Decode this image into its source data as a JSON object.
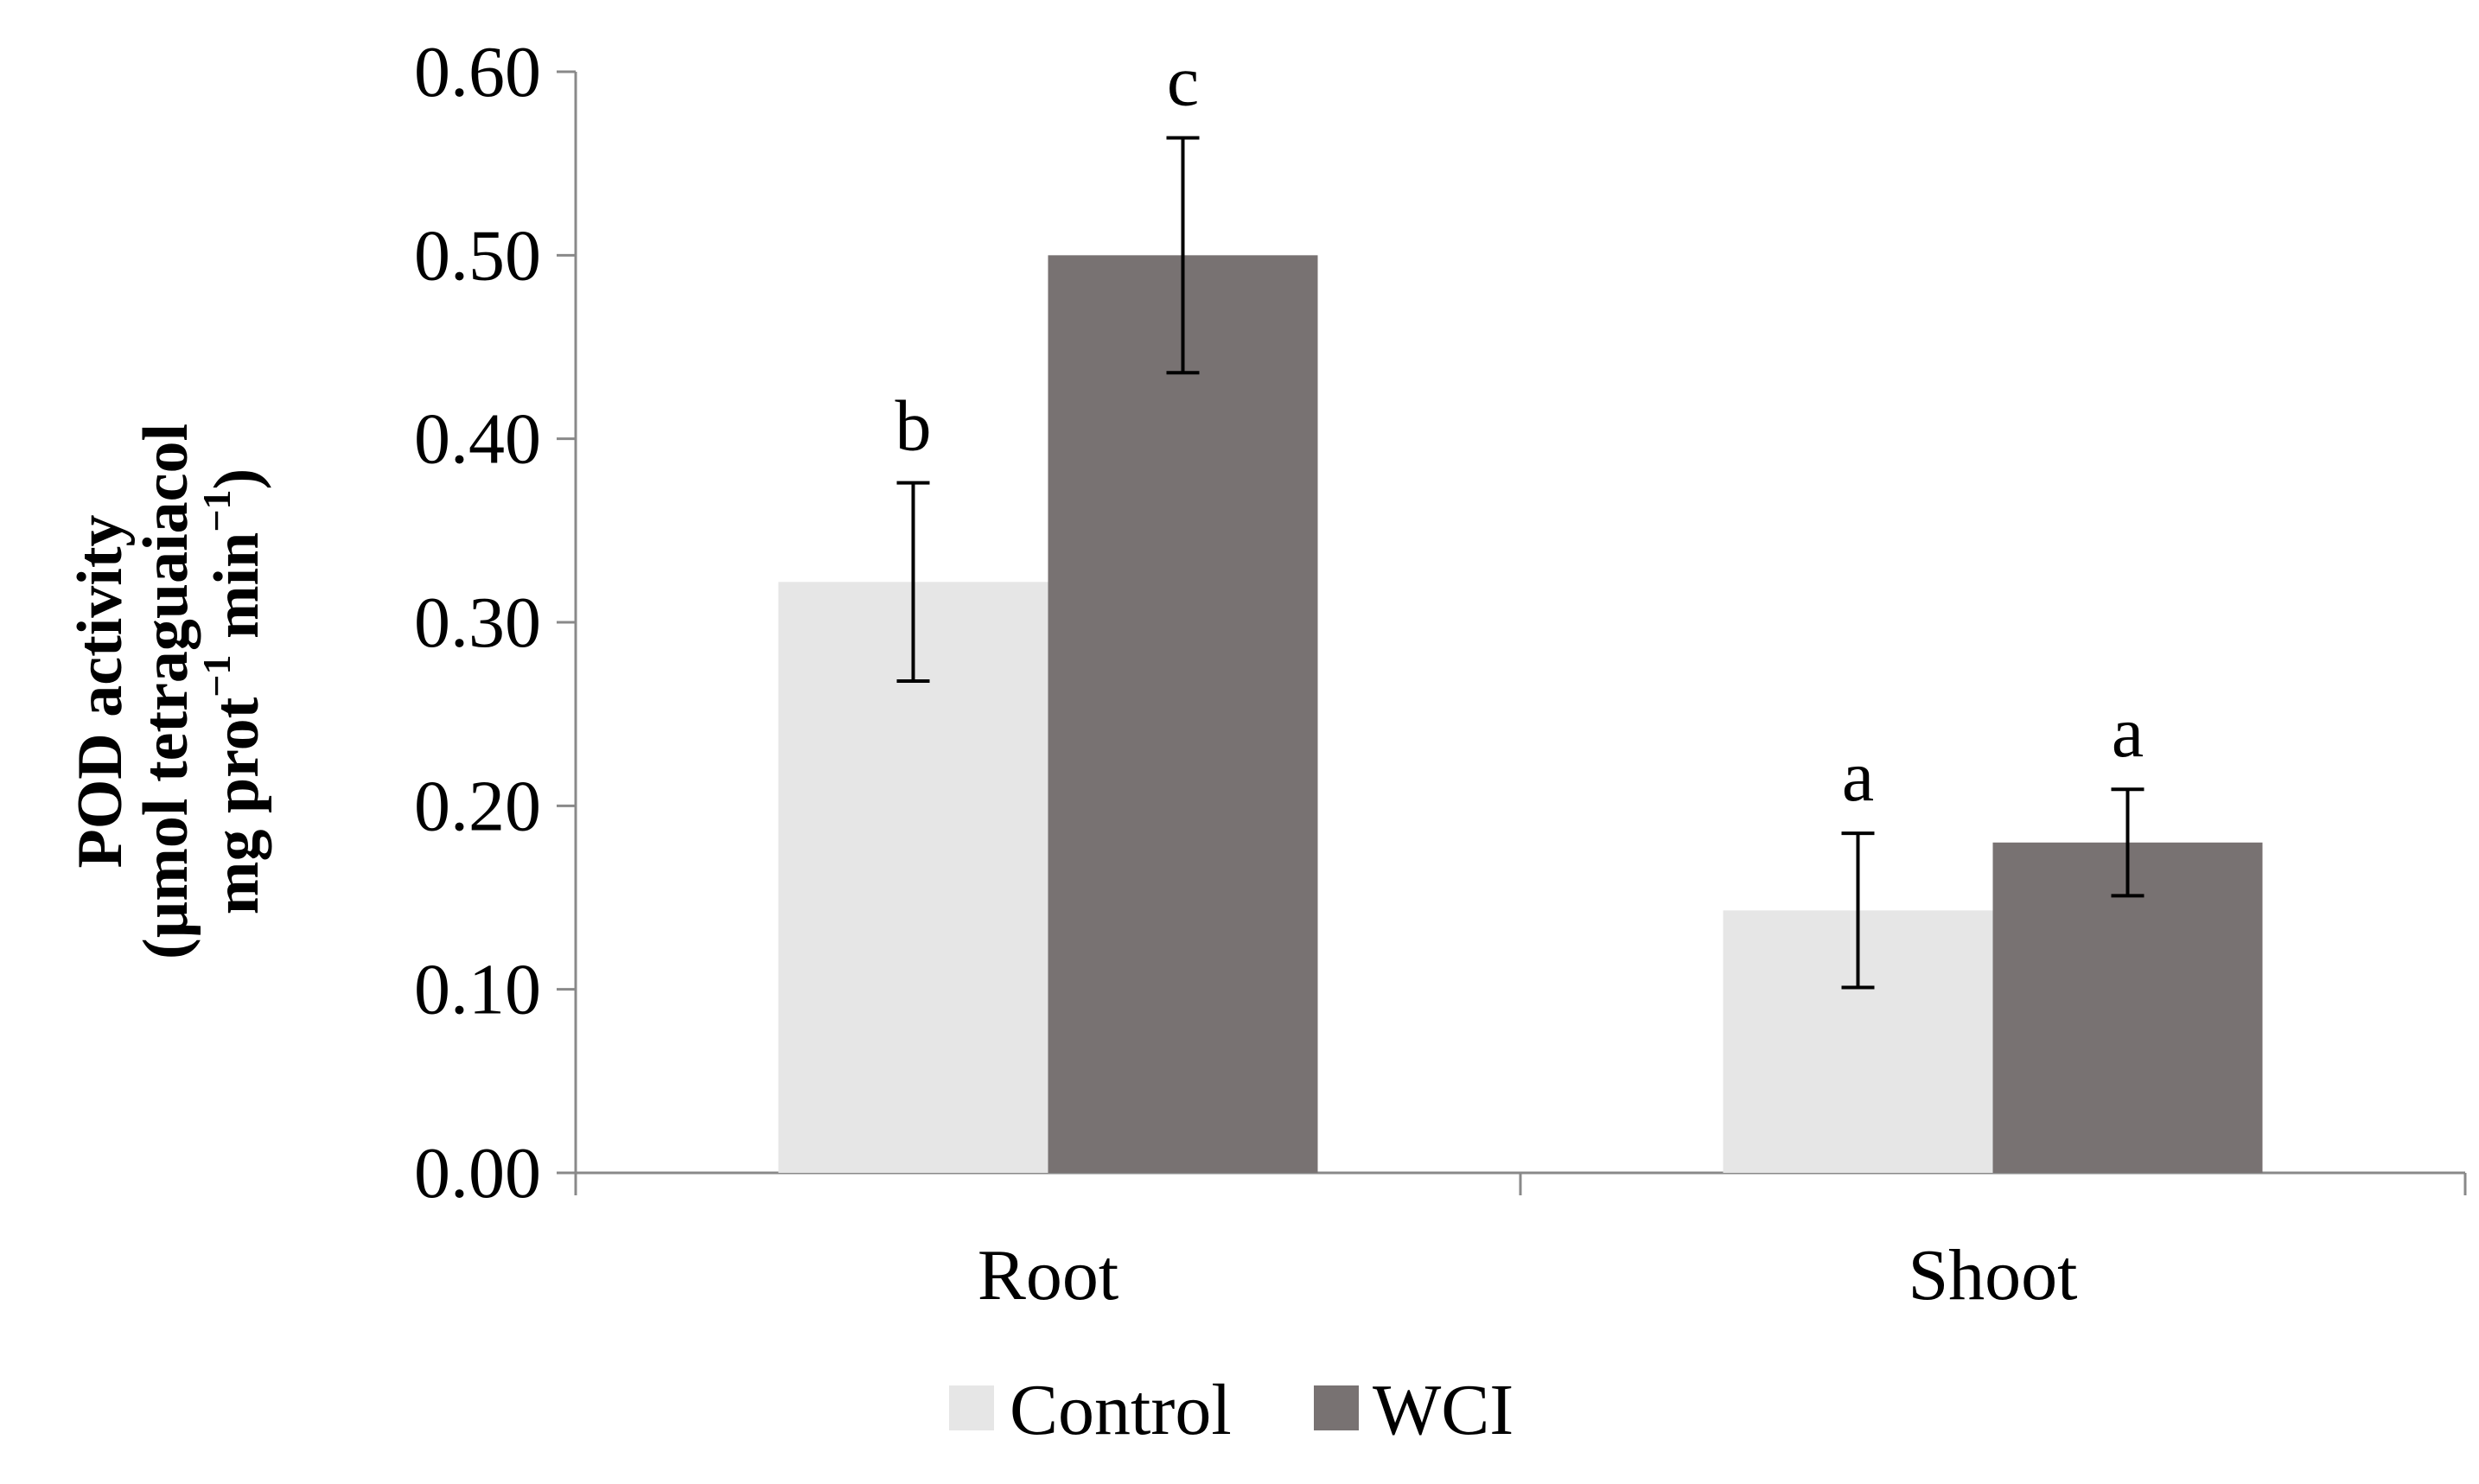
{
  "chart_data": {
    "type": "bar",
    "categories": [
      "Root",
      "Shoot"
    ],
    "series": [
      {
        "name": "Control",
        "color": "#e6e6e6",
        "values": [
          0.322,
          0.143
        ],
        "errors": [
          0.054,
          0.042
        ],
        "significance": [
          "b",
          "a"
        ]
      },
      {
        "name": "WCI",
        "color": "#787272",
        "values": [
          0.5,
          0.18
        ],
        "errors": [
          0.064,
          0.029
        ],
        "significance": [
          "c",
          "a"
        ]
      }
    ],
    "ylim": [
      0,
      0.6
    ],
    "yticks": [
      "0.00",
      "0.10",
      "0.20",
      "0.30",
      "0.40",
      "0.50",
      "0.60"
    ],
    "ylabel": {
      "line1": "POD activity",
      "line2": "(µmol tetraguaiacol",
      "line3_pre": "mg prot",
      "sup1": "−1",
      "line3_mid": " min",
      "sup2": "−1",
      "line3_post": ")"
    },
    "xlabel": "",
    "legend_position": "bottom",
    "grid": false,
    "axis_color": "#898989"
  }
}
